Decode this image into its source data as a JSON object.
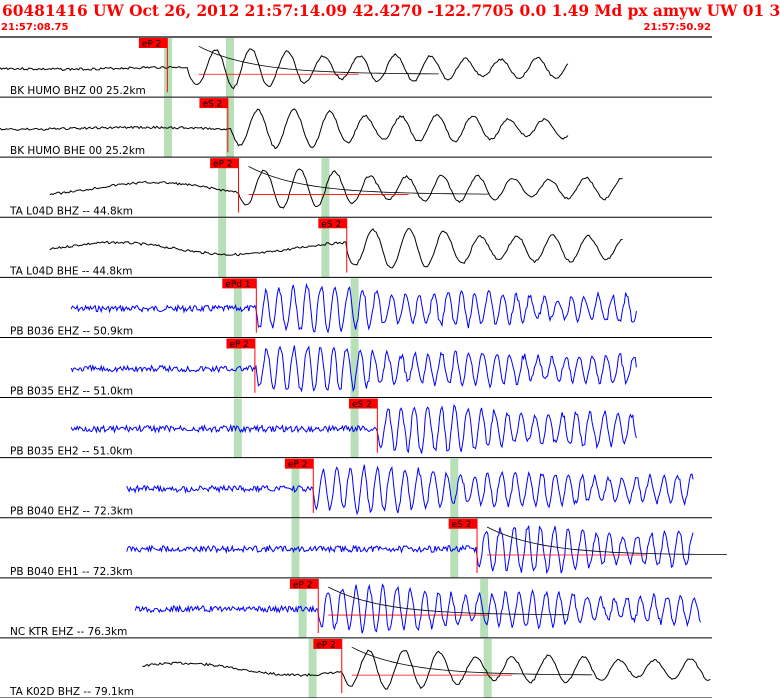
{
  "header": {
    "title": "60481416 UW Oct 26, 2012 21:57:14.09   42.4270 -122.7705  0.0 1.49 Md px amyw UW 01   3",
    "start_time": "21:57:08.75",
    "end_time": "21:57:50.92"
  },
  "colors": {
    "header_text": "#ff0000",
    "pick_flag": "#ff0000",
    "pick_line": "#ff0000",
    "broadband_trace": "#000000",
    "short_period_trace": "#0000ff",
    "predicted_window": "#b8e0b8",
    "separator": "#000000"
  },
  "chart_data": {
    "type": "line",
    "title": "60481416 UW Oct 26, 2012 21:57:14.09   42.4270 -122.7705  0.0 1.49 Md px amyw UW 01   3",
    "xlabel": "",
    "ylabel": "",
    "time_window": [
      "21:57:08.75",
      "21:57:50.92"
    ],
    "series": [
      {
        "name": "BK HUMO BHZ 00 25.2km",
        "label": "BK HUMO BHZ 00 25.2km",
        "color": "#000000",
        "data_start": 0.0,
        "data_end": 0.8,
        "onset": 0.265,
        "pick": {
          "label": "eP 2",
          "t": 0.235
        },
        "windows": [
          0.236,
          0.323
        ],
        "coda": true
      },
      {
        "name": "BK HUMO BHE 00 25.2km",
        "label": "BK HUMO BHE 00 25.2km",
        "color": "#000000",
        "data_start": 0.0,
        "data_end": 0.8,
        "onset": 0.325,
        "pick": {
          "label": "eS 2",
          "t": 0.32
        },
        "windows": [
          0.236,
          0.323
        ],
        "coda": false
      },
      {
        "name": "TA L04D BHZ -- 44.8km",
        "label": "TA L04D BHZ -- 44.8km",
        "color": "#000000",
        "data_start": 0.07,
        "data_end": 0.875,
        "onset": 0.335,
        "pick": {
          "label": "eP 2",
          "t": 0.335
        },
        "windows": [
          0.312,
          0.457
        ],
        "coda": true
      },
      {
        "name": "TA L04D BHE -- 44.8km",
        "label": "TA L04D BHE -- 44.8km",
        "color": "#000000",
        "data_start": 0.07,
        "data_end": 0.875,
        "onset": 0.487,
        "pick": {
          "label": "eS 2",
          "t": 0.487
        },
        "windows": [
          0.312,
          0.457
        ],
        "coda": false
      },
      {
        "name": "PB B036 EHZ -- 50.9km",
        "label": "PB B036 EHZ -- 50.9km",
        "color": "#0000ff",
        "data_start": 0.1,
        "data_end": 0.895,
        "onset": 0.36,
        "pick": {
          "label": "ePd 1",
          "t": 0.36
        },
        "windows": [
          0.334,
          0.498
        ],
        "coda": false
      },
      {
        "name": "PB B035 EHZ -- 51.0km",
        "label": "PB B035 EHZ -- 51.0km",
        "color": "#0000ff",
        "data_start": 0.1,
        "data_end": 0.895,
        "onset": 0.36,
        "pick": {
          "label": "eP 2",
          "t": 0.358
        },
        "windows": [
          0.334,
          0.498
        ],
        "coda": false
      },
      {
        "name": "PB B035 EH2 -- 51.0km",
        "label": "PB B035 EH2 -- 51.0km",
        "color": "#0000ff",
        "data_start": 0.1,
        "data_end": 0.895,
        "onset": 0.53,
        "pick": {
          "label": "eS 2",
          "t": 0.53
        },
        "windows": [
          0.334,
          0.498
        ],
        "coda": false
      },
      {
        "name": "PB B040 EHZ -- 72.3km",
        "label": "PB B040 EHZ -- 72.3km",
        "color": "#0000ff",
        "data_start": 0.178,
        "data_end": 0.975,
        "onset": 0.44,
        "pick": {
          "label": "eP 2",
          "t": 0.44
        },
        "windows": [
          0.415,
          0.638
        ],
        "coda": false
      },
      {
        "name": "PB B040 EH1 -- 72.3km",
        "label": "PB B040 EH1 -- 72.3km",
        "color": "#0000ff",
        "data_start": 0.178,
        "data_end": 0.975,
        "onset": 0.67,
        "pick": {
          "label": "eS 2",
          "t": 0.67
        },
        "windows": [
          0.415,
          0.638
        ],
        "coda": true
      },
      {
        "name": "NC KTR EHZ -- 76.3km",
        "label": "NC KTR EHZ -- 76.3km",
        "color": "#0000ff",
        "data_start": 0.19,
        "data_end": 0.985,
        "onset": 0.447,
        "pick": {
          "label": "eP 2",
          "t": 0.447
        },
        "windows": [
          0.425,
          0.68
        ],
        "coda": true
      },
      {
        "name": "TA K02D BHZ -- 79.1km",
        "label": "TA K02D BHZ -- 79.1km",
        "color": "#000000",
        "data_start": 0.2,
        "data_end": 1.0,
        "onset": 0.48,
        "pick": {
          "label": "eP 2",
          "t": 0.48
        },
        "windows": [
          0.439,
          0.685
        ],
        "coda": true
      }
    ],
    "grid": false,
    "legend": "none"
  }
}
